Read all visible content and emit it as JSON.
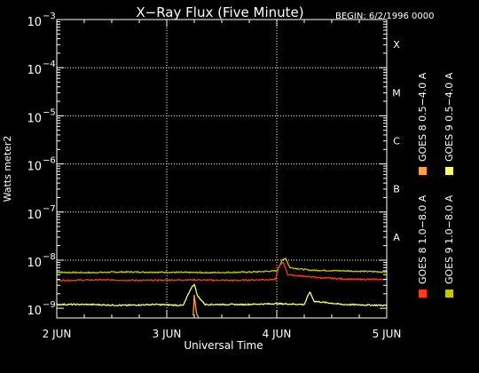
{
  "chart_data": {
    "type": "line",
    "title": "X−Ray Flux (Five Minute)",
    "begin_label": "BEGIN: 6/2/1996 0000",
    "xlabel": "Universal Time",
    "ylabel": "Watts meter2",
    "x_ticks": [
      "2 JUN",
      "3 JUN",
      "4 JUN",
      "5 JUN"
    ],
    "y_ticks": [
      {
        "base": "10",
        "exp": "−9",
        "value": 1e-09
      },
      {
        "base": "10",
        "exp": "−8",
        "value": 1e-08
      },
      {
        "base": "10",
        "exp": "−7",
        "value": 1e-07
      },
      {
        "base": "10",
        "exp": "−6",
        "value": 1e-06
      },
      {
        "base": "10",
        "exp": "−5",
        "value": 1e-05
      },
      {
        "base": "10",
        "exp": "−4",
        "value": 0.0001
      },
      {
        "base": "10",
        "exp": "−3",
        "value": 0.001
      }
    ],
    "xlim_days": [
      0,
      3
    ],
    "ylim": [
      6.3e-10,
      0.001
    ],
    "y_scale": "log",
    "grid": "dotted",
    "class_labels": [
      {
        "label": "A",
        "value": 1e-08
      },
      {
        "label": "B",
        "value": 1e-07
      },
      {
        "label": "C",
        "value": 1e-06
      },
      {
        "label": "M",
        "value": 1e-05
      },
      {
        "label": "X",
        "value": 0.0001
      }
    ],
    "legend": [
      {
        "name": "GOES 8 1.0−8.0 A",
        "color": "#ff3a1a"
      },
      {
        "name": "GOES 8 0.5−4.0 A",
        "color": "#ffa040"
      },
      {
        "name": "GOES 9 1.0−8.0 A",
        "color": "#c8c800"
      },
      {
        "name": "GOES 9 0.5−4.0 A",
        "color": "#ffff70"
      }
    ],
    "series": [
      {
        "name": "GOES 9 1.0−8.0 A",
        "color": "#c8c800",
        "points": [
          [
            0,
            5.6e-09
          ],
          [
            0.3,
            5.5e-09
          ],
          [
            0.6,
            5.7e-09
          ],
          [
            1.0,
            5.6e-09
          ],
          [
            1.4,
            5.5e-09
          ],
          [
            1.8,
            5.7e-09
          ],
          [
            2.0,
            6e-09
          ],
          [
            2.05,
            1e-08
          ],
          [
            2.08,
            1.1e-08
          ],
          [
            2.12,
            7e-09
          ],
          [
            2.3,
            6.2e-09
          ],
          [
            2.6,
            6e-09
          ],
          [
            3.0,
            5.7e-09
          ]
        ]
      },
      {
        "name": "GOES 8 1.0−8.0 A",
        "color": "#ff3a1a",
        "points": [
          [
            0,
            3.8e-09
          ],
          [
            0.4,
            3.9e-09
          ],
          [
            0.8,
            3.8e-09
          ],
          [
            1.2,
            3.9e-09
          ],
          [
            1.6,
            3.8e-09
          ],
          [
            1.99,
            4e-09
          ],
          [
            2.02,
            7.5e-09
          ],
          [
            2.06,
            9e-09
          ],
          [
            2.1,
            5e-09
          ],
          [
            2.4,
            4.3e-09
          ],
          [
            2.7,
            4e-09
          ],
          [
            3.0,
            4e-09
          ]
        ]
      },
      {
        "name": "GOES 9 0.5−4.0 A",
        "color": "#ffff70",
        "points": [
          [
            0,
            1.2e-09
          ],
          [
            0.3,
            1.2e-09
          ],
          [
            0.6,
            1.15e-09
          ],
          [
            0.9,
            1.2e-09
          ],
          [
            1.15,
            1.15e-09
          ],
          [
            1.22,
            2.6e-09
          ],
          [
            1.25,
            3.2e-09
          ],
          [
            1.28,
            1.8e-09
          ],
          [
            1.35,
            1.2e-09
          ],
          [
            1.7,
            1.2e-09
          ],
          [
            2.0,
            1.25e-09
          ],
          [
            2.25,
            1.2e-09
          ],
          [
            2.3,
            2.2e-09
          ],
          [
            2.34,
            1.4e-09
          ],
          [
            2.6,
            1.2e-09
          ],
          [
            3.0,
            1.15e-09
          ]
        ]
      },
      {
        "name": "GOES 8 0.5−4.0 A",
        "color": "#ffa040",
        "points": [
          [
            1.24,
            7e-10
          ],
          [
            1.25,
            1.9e-09
          ],
          [
            1.27,
            8e-10
          ],
          [
            1.29,
            6.3e-10
          ]
        ]
      }
    ]
  }
}
